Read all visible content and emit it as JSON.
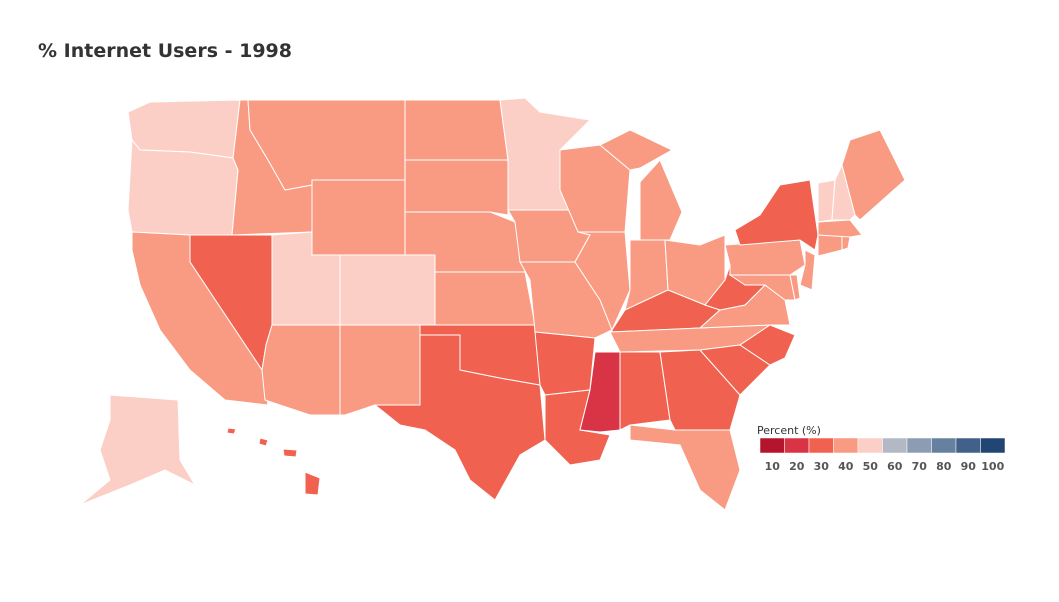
{
  "chart_data": {
    "type": "choropleth",
    "title": "% Internet Users - 1998",
    "values": [
      55,
      55,
      45,
      45,
      45,
      45,
      45,
      45,
      45,
      55,
      55,
      35,
      45,
      45,
      45,
      35,
      35,
      55,
      45,
      45,
      35,
      35,
      25,
      45,
      45,
      45,
      45,
      45,
      35,
      45,
      35,
      35,
      45,
      35,
      35,
      45,
      35,
      45,
      35,
      45,
      45,
      45,
      45,
      45,
      45,
      55,
      55,
      45,
      58,
      35
    ],
    "legend": {
      "title": "Percent (%)",
      "ticks": [
        10,
        20,
        30,
        40,
        50,
        60,
        70,
        80,
        90,
        100
      ],
      "colors": [
        "#b5142d",
        "#d93446",
        "#f0624f",
        "#f99b82",
        "#fccfc6",
        "#b2b9c5",
        "#8c9db3",
        "#66809f",
        "#41608a",
        "#224673"
      ]
    }
  }
}
